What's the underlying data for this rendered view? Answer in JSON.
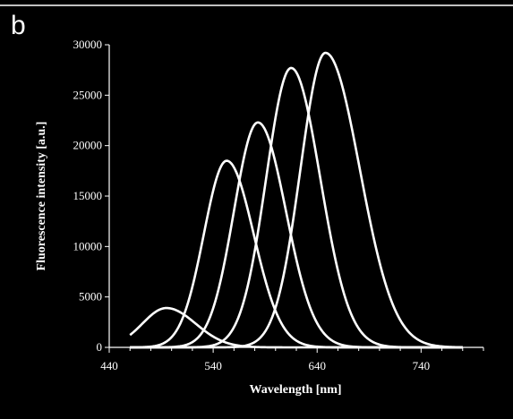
{
  "panel_label": "b",
  "colors": {
    "background": "#000000",
    "foreground": "#ffffff"
  },
  "chart_data": {
    "type": "line",
    "title": "",
    "xlabel": "Wavelength [nm]",
    "ylabel": "Fluorescence intensity [a.u.]",
    "xlim": [
      440,
      800
    ],
    "ylim": [
      0,
      30000
    ],
    "x_ticks": [
      440,
      540,
      640,
      740
    ],
    "y_ticks": [
      0,
      5000,
      10000,
      15000,
      20000,
      25000,
      30000
    ],
    "grid": false,
    "legend": "none",
    "series": [
      {
        "peak_nm": 495,
        "peak_intensity": 3900,
        "width_left": 23,
        "width_right": 28
      },
      {
        "peak_nm": 553,
        "peak_intensity": 18500,
        "width_left": 22,
        "width_right": 26
      },
      {
        "peak_nm": 583,
        "peak_intensity": 22300,
        "width_left": 23,
        "width_right": 27
      },
      {
        "peak_nm": 615,
        "peak_intensity": 27700,
        "width_left": 24,
        "width_right": 28
      },
      {
        "peak_nm": 648,
        "peak_intensity": 29200,
        "width_left": 24,
        "width_right": 33
      }
    ]
  }
}
